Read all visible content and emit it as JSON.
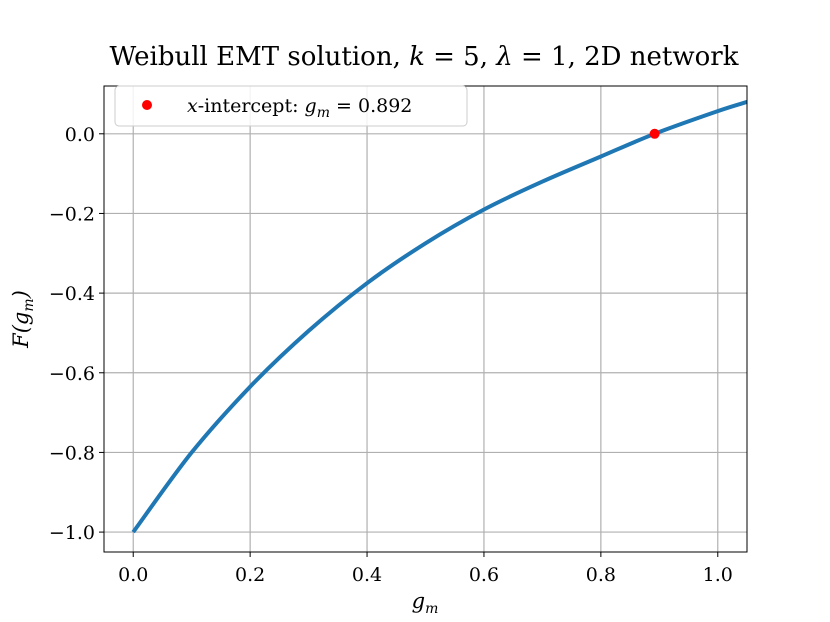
{
  "chart_data": {
    "type": "line",
    "title": "Weibull EMT solution, k = 5, λ = 1, 2D network",
    "xlabel": "g_m",
    "ylabel": "F(g_m)",
    "xlim": [
      -0.05,
      1.05
    ],
    "ylim": [
      -1.05,
      0.12
    ],
    "xticks": [
      0.0,
      0.2,
      0.4,
      0.6,
      0.8,
      1.0
    ],
    "xtick_labels": [
      "0.0",
      "0.2",
      "0.4",
      "0.6",
      "0.8",
      "1.0"
    ],
    "yticks": [
      0.0,
      -0.2,
      -0.4,
      -0.6,
      -0.8,
      -1.0
    ],
    "ytick_labels": [
      "0.0",
      "−0.2",
      "−0.4",
      "−0.6",
      "−0.8",
      "−1.0"
    ],
    "grid": true,
    "legend_position": "top-left",
    "series": [
      {
        "color": "#1f77b4",
        "x": [
          0.0,
          0.1,
          0.2,
          0.3,
          0.4,
          0.5,
          0.6,
          0.7,
          0.8,
          0.892,
          1.0,
          1.05
        ],
        "y": [
          -1.0,
          -0.8,
          -0.635,
          -0.495,
          -0.375,
          -0.275,
          -0.19,
          -0.12,
          -0.057,
          0.0,
          0.057,
          0.08
        ]
      }
    ],
    "intercept": {
      "x": 0.892,
      "y": 0.0,
      "color": "#ff0000",
      "legend_label": "x-intercept: g_m = 0.892"
    }
  }
}
